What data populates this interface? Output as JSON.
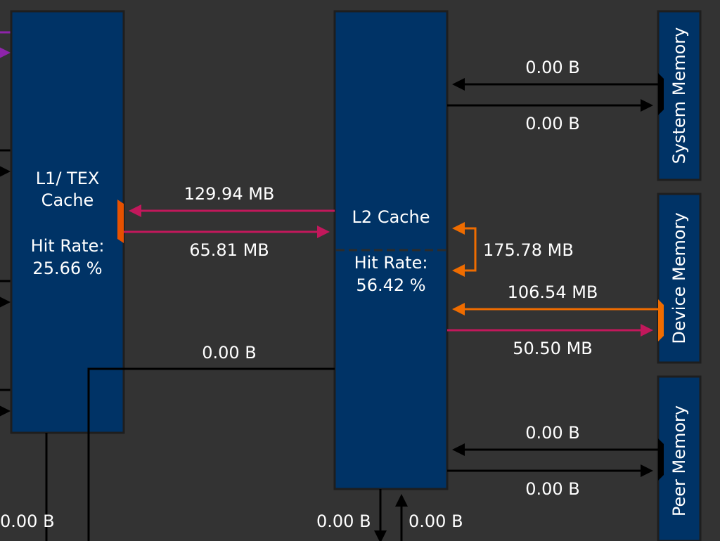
{
  "blocks": {
    "l1_title_line1": "L1/ TEX",
    "l1_title_line2": "Cache",
    "l1_hit_label": "Hit Rate:",
    "l1_hit_value": "25.66 %",
    "l2_title": "L2 Cache",
    "l2_hit_label": "Hit Rate:",
    "l2_hit_value": "56.42 %",
    "system_memory": "System Memory",
    "device_memory": "Device Memory",
    "peer_memory": "Peer Memory"
  },
  "transfers": {
    "l2_to_l1": "129.94 MB",
    "l1_to_l2": "65.81 MB",
    "l1_left_bottom": "0.00 B",
    "l1_bottom_bus": "0.00 B",
    "l2_loop": "175.78 MB",
    "sys_to_l2": "0.00 B",
    "l2_to_sys": "0.00 B",
    "dev_to_l2": "106.54 MB",
    "l2_to_dev": "50.50 MB",
    "peer_to_l2": "0.00 B",
    "l2_to_peer": "0.00 B",
    "l2_bottom_out": "0.00 B",
    "l2_bottom_in": "0.00 B"
  },
  "colors": {
    "background": "#333333",
    "block_fill": "#003366",
    "block_border": "#1e1e1e",
    "pink_link": "#c2185b",
    "orange_link": "#ef6c00",
    "black_link": "#000000",
    "purple_link": "#8e24aa"
  }
}
